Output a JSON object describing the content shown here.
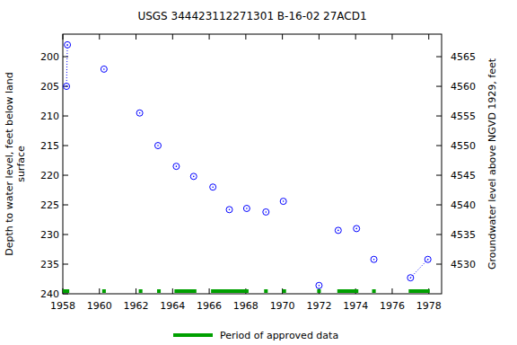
{
  "chart_data": {
    "type": "scatter",
    "title": "USGS 344423112271301 B-16-02 27ACD1",
    "ylabel": [
      "Depth to water level, feet below land",
      "surface"
    ],
    "y2label": "Groundwater level above NGVD 1929, feet",
    "xlim": [
      1958,
      1978.7
    ],
    "xticks": [
      1958,
      1960,
      1962,
      1964,
      1966,
      1968,
      1970,
      1972,
      1974,
      1976,
      1978
    ],
    "ylim": [
      240,
      196.2
    ],
    "yticks": [
      200,
      205,
      210,
      215,
      220,
      225,
      230,
      235,
      240
    ],
    "y2lim": [
      4525,
      4568.8
    ],
    "y2ticks": [
      4530,
      4535,
      4540,
      4545,
      4550,
      4555,
      4560,
      4565
    ],
    "grid": false,
    "series": [
      {
        "color": "#0000ff",
        "marker": "circle",
        "line_style": "dotted",
        "x": [
          1958.2,
          1958.25,
          null,
          1960.25,
          null,
          1962.2,
          null,
          1963.2,
          null,
          1964.2,
          null,
          1965.15,
          null,
          1966.2,
          null,
          1967.1,
          null,
          1968.05,
          null,
          1969.1,
          null,
          1970.05,
          null,
          1972.0,
          null,
          1973.05,
          null,
          1974.05,
          null,
          1975.0,
          null,
          1977.0,
          1977.95
        ],
        "values": [
          205.0,
          198.0,
          null,
          202.1,
          null,
          209.5,
          null,
          215.0,
          null,
          218.5,
          null,
          220.2,
          null,
          222.0,
          null,
          225.8,
          null,
          225.6,
          null,
          226.2,
          null,
          224.4,
          null,
          238.6,
          null,
          229.3,
          null,
          229.0,
          null,
          234.2,
          null,
          237.3,
          234.2
        ]
      }
    ],
    "approved_periods": {
      "name": "Period of approved data",
      "color": "#00a000",
      "ranges": [
        [
          1958,
          1958.35
        ],
        [
          1960.15,
          1960.35
        ],
        [
          1962.15,
          1962.35
        ],
        [
          1963.15,
          1963.35
        ],
        [
          1964.1,
          1965.3
        ],
        [
          1966.1,
          1968.15
        ],
        [
          1969.0,
          1969.2
        ],
        [
          1970.0,
          1970.2
        ],
        [
          1971.9,
          1972.1
        ],
        [
          1973.0,
          1974.15
        ],
        [
          1974.9,
          1975.1
        ],
        [
          1976.9,
          1978.05
        ]
      ]
    }
  }
}
